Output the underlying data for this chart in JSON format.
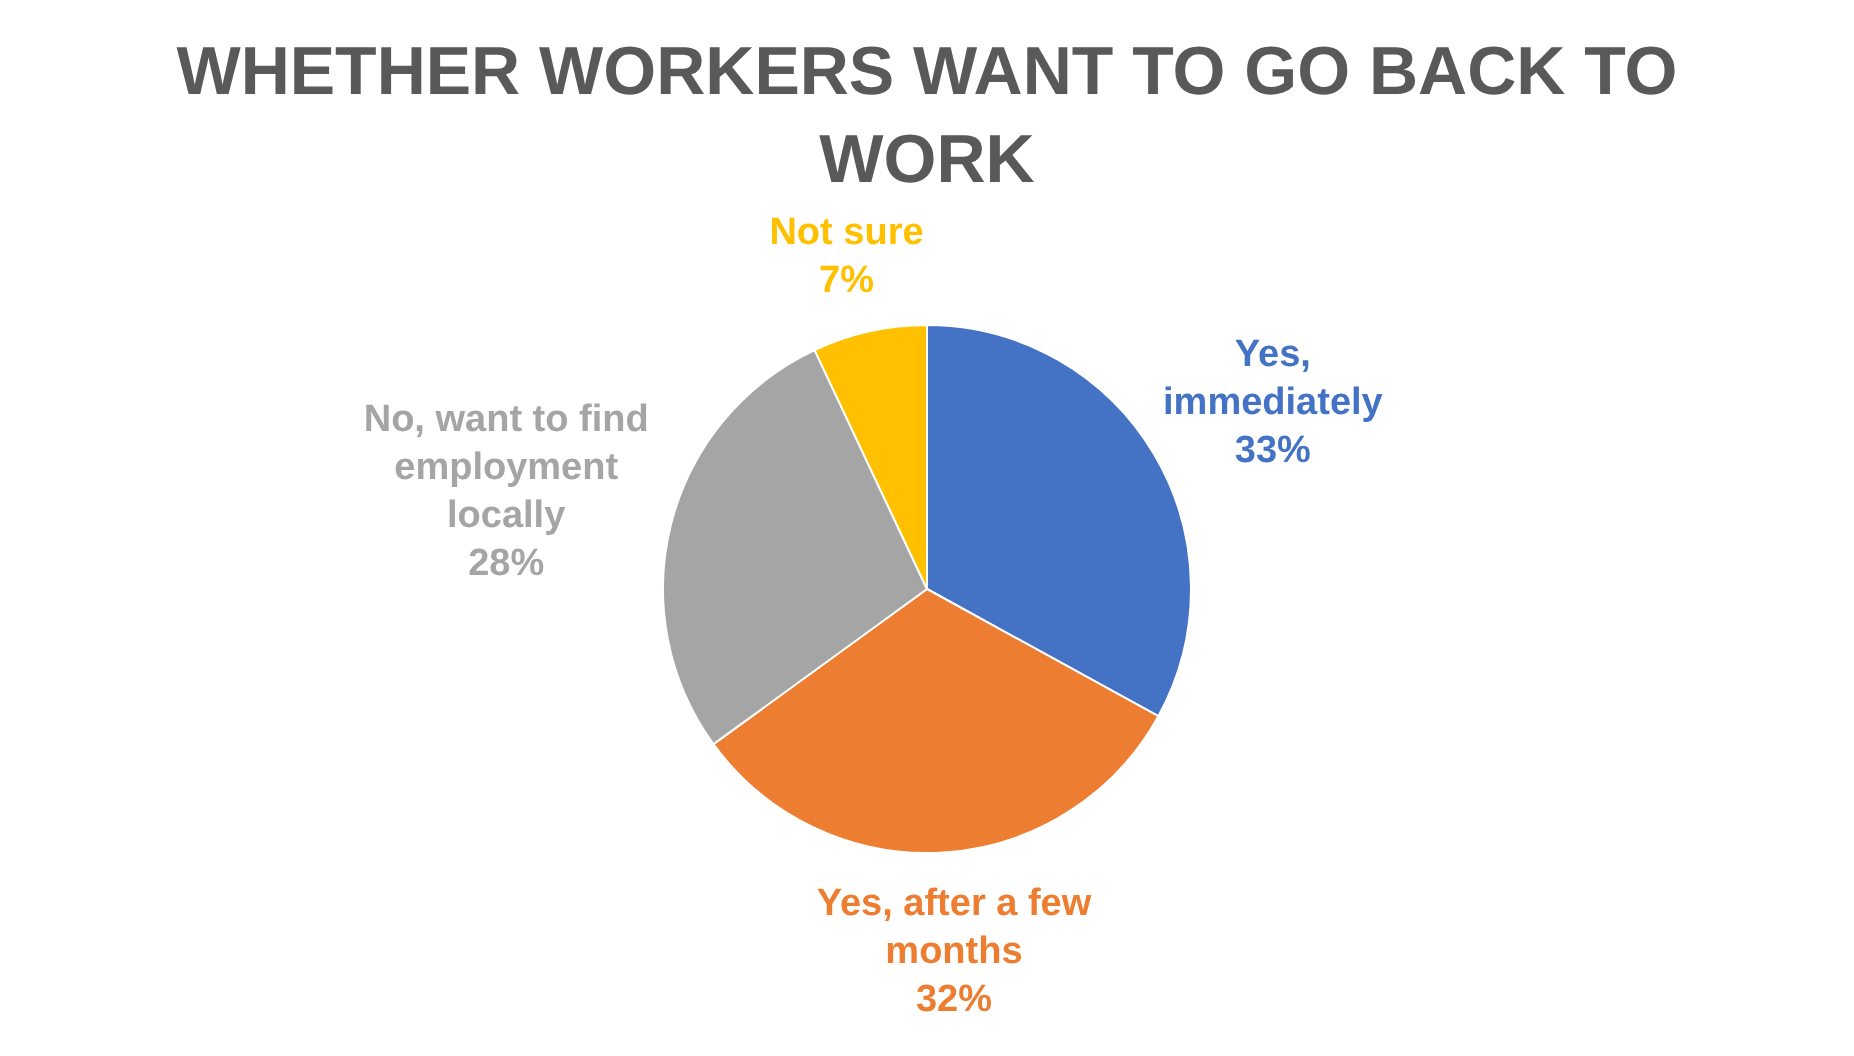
{
  "chart_data": {
    "type": "pie",
    "title": "WHETHER WORKERS WANT TO GO BACK TO WORK",
    "categories": [
      "Yes, immediately",
      "Yes, after a few months",
      "No, want to find employment locally",
      "Not sure"
    ],
    "values": [
      33,
      32,
      28,
      7
    ],
    "colors": [
      "#4472c4",
      "#ed7d31",
      "#a5a5a5",
      "#ffc000"
    ],
    "value_labels": [
      "33%",
      "32%",
      "28%",
      "7%"
    ],
    "legend": false
  }
}
